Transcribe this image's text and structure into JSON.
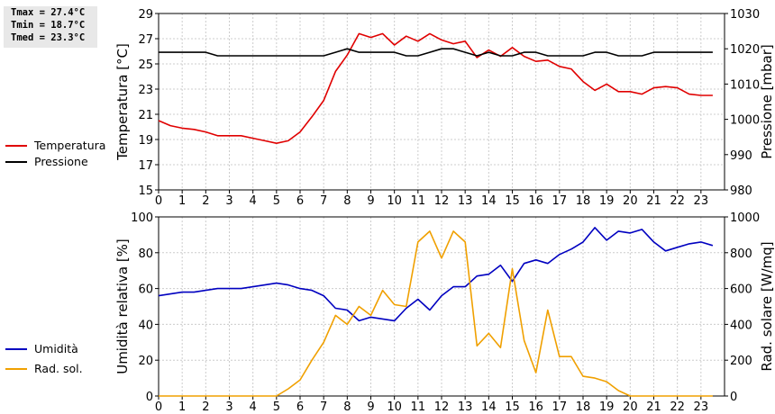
{
  "stats": {
    "tmax": "Tmax = 27.4°C",
    "tmin": "Tmin = 18.7°C",
    "tmed": "Tmed = 23.3°C"
  },
  "chart_data": [
    {
      "type": "line",
      "x_ticks": [
        "0",
        "1",
        "2",
        "3",
        "4",
        "5",
        "6",
        "7",
        "8",
        "9",
        "10",
        "11",
        "12",
        "13",
        "14",
        "15",
        "16",
        "17",
        "18",
        "19",
        "20",
        "21",
        "22",
        "23"
      ],
      "xlim": [
        0,
        24
      ],
      "ylabel": "Temperatura [°C]",
      "y2label": "Pressione [mbar]",
      "ylim": [
        15,
        29
      ],
      "y2lim": [
        980,
        1030
      ],
      "y_ticks": [
        15,
        17,
        19,
        21,
        23,
        25,
        27,
        29
      ],
      "y2_ticks": [
        980,
        990,
        1000,
        1010,
        1020,
        1030
      ],
      "grid": true,
      "legend_position": "left",
      "series": [
        {
          "name": "Temperatura",
          "axis": "left",
          "color": "#e00000",
          "x": [
            0,
            0.5,
            1,
            1.5,
            2,
            2.5,
            3,
            3.5,
            4,
            4.5,
            5,
            5.5,
            6,
            6.5,
            7,
            7.5,
            8,
            8.5,
            9,
            9.5,
            10,
            10.5,
            11,
            11.5,
            12,
            12.5,
            13,
            13.5,
            14,
            14.5,
            15,
            15.5,
            16,
            16.5,
            17,
            17.5,
            18,
            18.5,
            19,
            19.5,
            20,
            20.5,
            21,
            21.5,
            22,
            22.5,
            23,
            23.5
          ],
          "values": [
            20.5,
            20.1,
            19.9,
            19.8,
            19.6,
            19.3,
            19.3,
            19.3,
            19.1,
            18.9,
            18.7,
            18.9,
            19.6,
            20.8,
            22.1,
            24.4,
            25.7,
            27.4,
            27.1,
            27.4,
            26.5,
            27.2,
            26.8,
            27.4,
            26.9,
            26.6,
            26.8,
            25.5,
            26.1,
            25.6,
            26.3,
            25.6,
            25.2,
            25.3,
            24.8,
            24.6,
            23.6,
            22.9,
            23.4,
            22.8,
            22.8,
            22.6,
            23.1,
            23.2,
            23.1,
            22.6,
            22.5,
            22.5
          ]
        },
        {
          "name": "Pressione",
          "axis": "right",
          "color": "#000000",
          "x": [
            0,
            0.5,
            1,
            1.5,
            2,
            2.5,
            3,
            3.5,
            4,
            4.5,
            5,
            5.5,
            6,
            6.5,
            7,
            7.5,
            8,
            8.5,
            9,
            9.5,
            10,
            10.5,
            11,
            11.5,
            12,
            12.5,
            13,
            13.5,
            14,
            14.5,
            15,
            15.5,
            16,
            16.5,
            17,
            17.5,
            18,
            18.5,
            19,
            19.5,
            20,
            20.5,
            21,
            21.5,
            22,
            22.5,
            23,
            23.5
          ],
          "values": [
            1019,
            1019,
            1019,
            1019,
            1019,
            1018,
            1018,
            1018,
            1018,
            1018,
            1018,
            1018,
            1018,
            1018,
            1018,
            1019,
            1020,
            1019,
            1019,
            1019,
            1019,
            1018,
            1018,
            1019,
            1020,
            1020,
            1019,
            1018,
            1019,
            1018,
            1018,
            1019,
            1019,
            1018,
            1018,
            1018,
            1018,
            1019,
            1019,
            1018,
            1018,
            1018,
            1019,
            1019,
            1019,
            1019,
            1019,
            1019
          ]
        }
      ]
    },
    {
      "type": "line",
      "x_ticks": [
        "0",
        "1",
        "2",
        "3",
        "4",
        "5",
        "6",
        "7",
        "8",
        "9",
        "10",
        "11",
        "12",
        "13",
        "14",
        "15",
        "16",
        "17",
        "18",
        "19",
        "20",
        "21",
        "22",
        "23"
      ],
      "xlim": [
        0,
        24
      ],
      "ylabel": "Umidità relativa [%]",
      "y2label": "Rad. solare [W/mq]",
      "ylim": [
        0,
        100
      ],
      "y2lim": [
        0,
        1000
      ],
      "y_ticks": [
        0,
        20,
        40,
        60,
        80,
        100
      ],
      "y2_ticks": [
        0,
        200,
        400,
        600,
        800,
        1000
      ],
      "grid": true,
      "legend_position": "left",
      "series": [
        {
          "name": "Umidità",
          "axis": "left",
          "color": "#0000c0",
          "x": [
            0,
            0.5,
            1,
            1.5,
            2,
            2.5,
            3,
            3.5,
            4,
            4.5,
            5,
            5.5,
            6,
            6.5,
            7,
            7.5,
            8,
            8.5,
            9,
            9.5,
            10,
            10.5,
            11,
            11.5,
            12,
            12.5,
            13,
            13.5,
            14,
            14.5,
            15,
            15.5,
            16,
            16.5,
            17,
            17.5,
            18,
            18.5,
            19,
            19.5,
            20,
            20.5,
            21,
            21.5,
            22,
            22.5,
            23,
            23.5
          ],
          "values": [
            56,
            57,
            58,
            58,
            59,
            60,
            60,
            60,
            61,
            62,
            63,
            62,
            60,
            59,
            56,
            49,
            48,
            42,
            44,
            43,
            42,
            49,
            54,
            48,
            56,
            61,
            61,
            67,
            68,
            73,
            64,
            74,
            76,
            74,
            79,
            82,
            86,
            94,
            87,
            92,
            91,
            93,
            86,
            81,
            83,
            85,
            86,
            84
          ]
        },
        {
          "name": "Rad. sol.",
          "axis": "right",
          "color": "#f0a000",
          "x": [
            0,
            0.5,
            1,
            1.5,
            2,
            2.5,
            3,
            3.5,
            4,
            4.5,
            5,
            5.5,
            6,
            6.5,
            7,
            7.5,
            8,
            8.5,
            9,
            9.5,
            10,
            10.5,
            11,
            11.5,
            12,
            12.5,
            13,
            13.5,
            14,
            14.5,
            15,
            15.5,
            16,
            16.5,
            17,
            17.5,
            18,
            18.5,
            19,
            19.5,
            20,
            20.5,
            21,
            21.5,
            22,
            22.5,
            23,
            23.5
          ],
          "values": [
            0,
            0,
            0,
            0,
            0,
            0,
            0,
            0,
            0,
            0,
            0,
            40,
            90,
            200,
            300,
            450,
            400,
            500,
            450,
            590,
            510,
            500,
            860,
            920,
            770,
            920,
            860,
            280,
            350,
            270,
            710,
            310,
            130,
            480,
            220,
            220,
            110,
            100,
            80,
            30,
            0,
            0,
            0,
            0,
            0,
            0,
            0,
            0
          ]
        }
      ]
    }
  ]
}
